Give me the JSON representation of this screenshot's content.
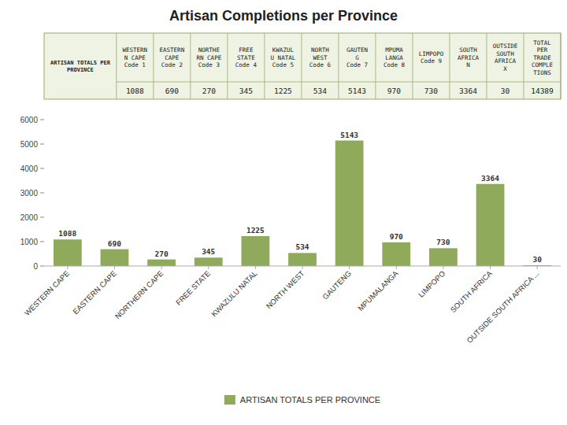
{
  "chart_data": {
    "type": "bar",
    "title": "Artisan Completions per Province",
    "categories": [
      "WESTERN CAPE",
      "EASTERN CAPE",
      "NORTHERN CAPE",
      "FREE STATE",
      "KWAZULU NATAL",
      "NORTH WEST",
      "GAUTENG",
      "MPUMALANGA",
      "LIMPOPO",
      "SOUTH AFRICA",
      "OUTSIDE SOUTH AFRICA ..."
    ],
    "series": [
      {
        "name": "ARTISAN TOTALS PER PROVINCE",
        "color": "#8faa5a",
        "values": [
          1088,
          690,
          270,
          345,
          1225,
          534,
          5143,
          970,
          730,
          3364,
          30
        ]
      }
    ],
    "ylim": [
      0,
      6000
    ],
    "yticks": [
      0,
      1000,
      2000,
      3000,
      4000,
      5000,
      6000
    ],
    "grid": false,
    "legend": "bottom",
    "data_labels": true,
    "table": {
      "columns": [
        "WESTERN\nN CAPE\nCode 1",
        "EASTERN\nCAPE\nCode 2",
        "NORTHE\nRN CAPE\nCode 3",
        "FREE\nSTATE\nCode 4",
        "KWAZUL\nU NATAL\nCode 5",
        "NORTH\nWEST\nCode 6",
        "GAUTEN\nG\nCode 7",
        "MPUMA\nLANGA\nCode 8",
        "LIMPOPO\nCode 9",
        "SOUTH\nAFRICA\nN",
        "OUTSIDE\nSOUTH\nAFRICA\nX",
        "TOTAL\nPER\nTRADE\nCOMPLE\nTIONS"
      ],
      "rows": [
        {
          "label": "ARTISAN TOTALS PER\nPROVINCE",
          "values": [
            1088,
            690,
            270,
            345,
            1225,
            534,
            5143,
            970,
            730,
            3364,
            30,
            14389
          ]
        }
      ]
    }
  }
}
